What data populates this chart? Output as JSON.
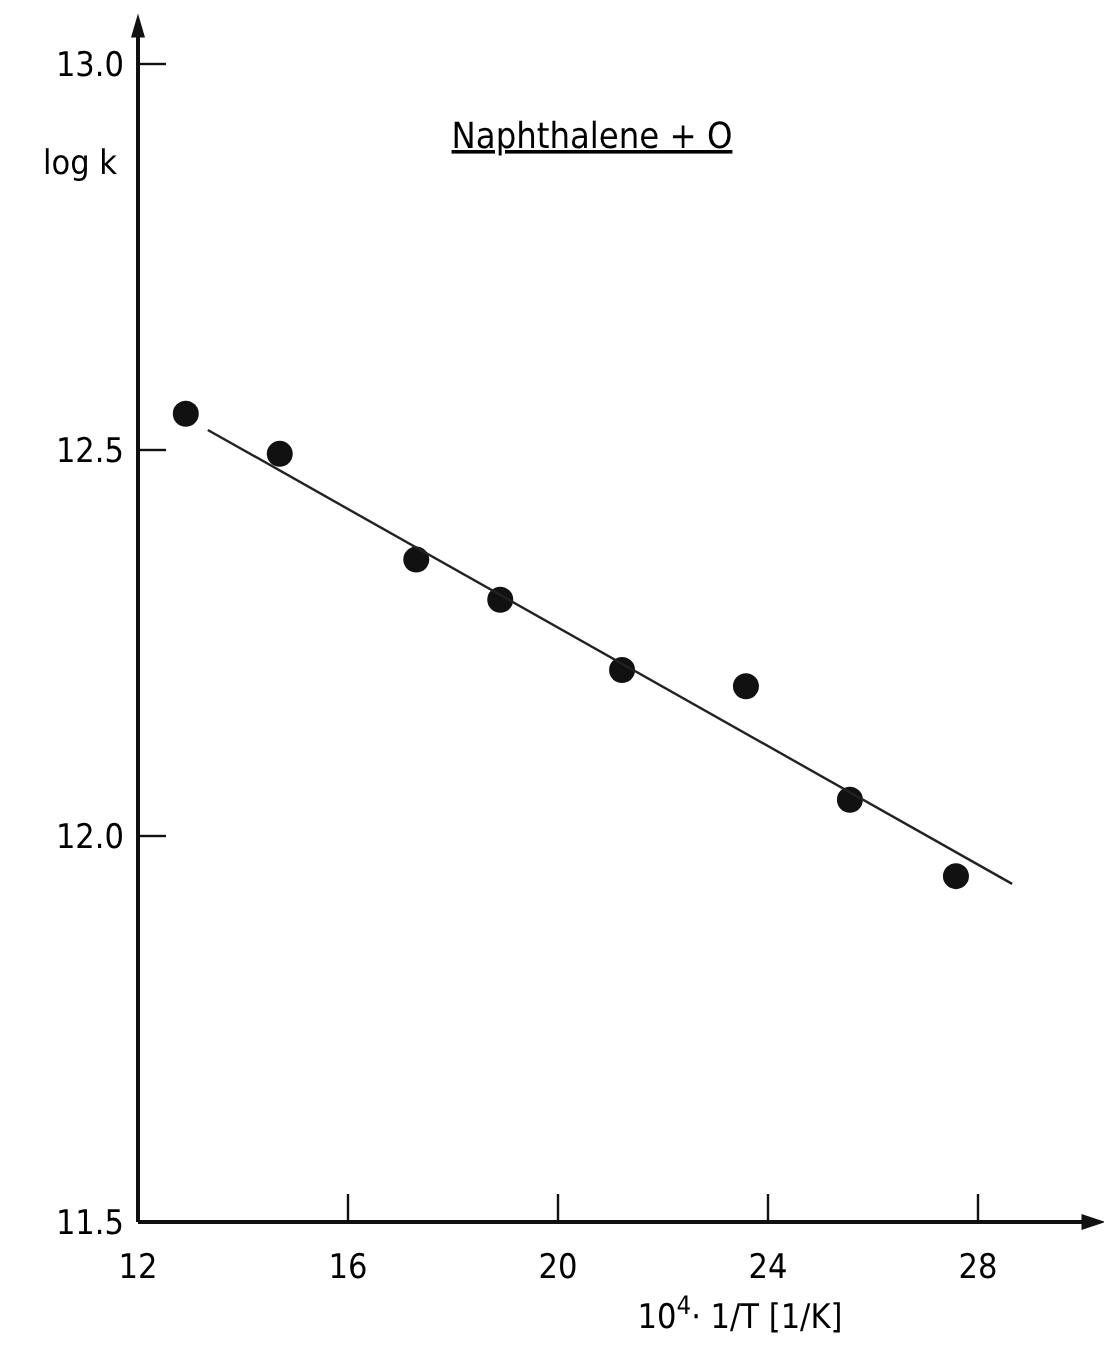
{
  "chart_data": {
    "type": "scatter",
    "title": "Naphthalene + O",
    "xlabel": "10$^{4}$· 1/T [1/K]",
    "ylabel": "log k",
    "xlim": [
      12,
      30.2
    ],
    "ylim": [
      11.5,
      13.05
    ],
    "xticks": [
      12,
      16,
      20,
      24,
      28
    ],
    "yticks": [
      {
        "value": 11.5,
        "label": "11.5"
      },
      {
        "value": 12,
        "label": "12.0"
      },
      {
        "value": 12.5,
        "label": "12.5"
      },
      {
        "value": 13,
        "label": "13.0"
      }
    ],
    "grid": false,
    "marker": "circle",
    "series": [
      {
        "color": "#111111",
        "x": [
          12.91,
          14.7,
          17.3,
          18.9,
          21.22,
          23.58,
          25.56,
          27.58
        ],
        "values": [
          12.547,
          12.495,
          12.358,
          12.306,
          12.215,
          12.194,
          12.047,
          11.948
        ]
      },
      {
        "type": "line",
        "color": "#222222",
        "marker": "none",
        "line_style": "solid",
        "x": [
          13.33,
          28.65
        ],
        "values": [
          12.526,
          11.938
        ]
      }
    ]
  }
}
